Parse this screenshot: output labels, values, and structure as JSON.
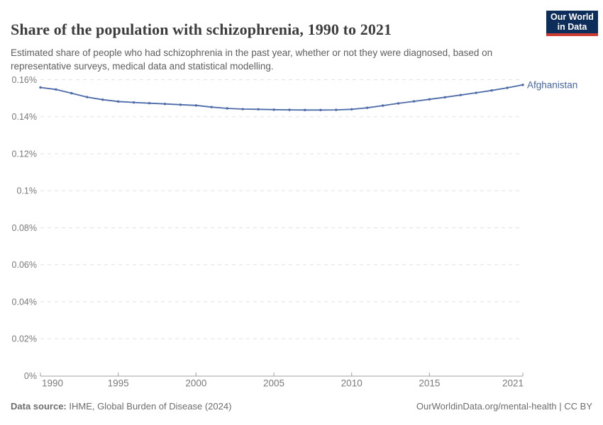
{
  "header": {
    "title": "Share of the population with schizophrenia, 1990 to 2021",
    "subtitle": "Estimated share of people who had schizophrenia in the past year, whether or not they were diagnosed, based on representative surveys, medical data and statistical modelling.",
    "logo": {
      "line1": "Our World",
      "line2": "in Data",
      "bg_color": "#0d2e5b",
      "accent_color": "#cd3d34"
    }
  },
  "chart_data": {
    "type": "line",
    "title": "Share of the population with schizophrenia, 1990 to 2021",
    "xlabel": "",
    "ylabel": "",
    "unit": "%",
    "x": [
      1990,
      1991,
      1992,
      1993,
      1994,
      1995,
      1996,
      1997,
      1998,
      1999,
      2000,
      2001,
      2002,
      2003,
      2004,
      2005,
      2006,
      2007,
      2008,
      2009,
      2010,
      2011,
      2012,
      2013,
      2014,
      2015,
      2016,
      2017,
      2018,
      2019,
      2020,
      2021
    ],
    "series": [
      {
        "name": "Afghanistan",
        "values": [
          0.1558,
          0.1547,
          0.1527,
          0.1506,
          0.1492,
          0.1482,
          0.1477,
          0.1473,
          0.1469,
          0.1465,
          0.1461,
          0.1452,
          0.1445,
          0.1441,
          0.144,
          0.1438,
          0.1437,
          0.1436,
          0.1436,
          0.1437,
          0.144,
          0.1448,
          0.146,
          0.1472,
          0.1483,
          0.1494,
          0.1505,
          0.1517,
          0.1529,
          0.1542,
          0.1556,
          0.1572
        ]
      }
    ],
    "ylim": [
      0,
      0.16
    ],
    "yticks": [
      {
        "value": 0,
        "label": "0%"
      },
      {
        "value": 0.02,
        "label": "0.02%"
      },
      {
        "value": 0.04,
        "label": "0.04%"
      },
      {
        "value": 0.06,
        "label": "0.06%"
      },
      {
        "value": 0.08,
        "label": "0.08%"
      },
      {
        "value": 0.1,
        "label": "0.1%"
      },
      {
        "value": 0.12,
        "label": "0.12%"
      },
      {
        "value": 0.14,
        "label": "0.14%"
      },
      {
        "value": 0.16,
        "label": "0.16%"
      }
    ],
    "xticks": [
      {
        "value": 1990,
        "label": "1990"
      },
      {
        "value": 1995,
        "label": "1995"
      },
      {
        "value": 2000,
        "label": "2000"
      },
      {
        "value": 2005,
        "label": "2005"
      },
      {
        "value": 2010,
        "label": "2010"
      },
      {
        "value": 2015,
        "label": "2015"
      },
      {
        "value": 2021,
        "label": "2021"
      }
    ],
    "legend_position": "end-of-line-label",
    "grid": "horizontal-dashed",
    "colors": {
      "line": "#4c6ba8",
      "entity_label": "#4465a2",
      "grid": "#e2e2e2",
      "axis": "#a0a0a0",
      "tick_text": "#7a7a7a"
    }
  },
  "footer": {
    "source_label": "Data source:",
    "source_text": " IHME, Global Burden of Disease (2024)",
    "attribution": "OurWorldinData.org/mental-health | CC BY"
  }
}
